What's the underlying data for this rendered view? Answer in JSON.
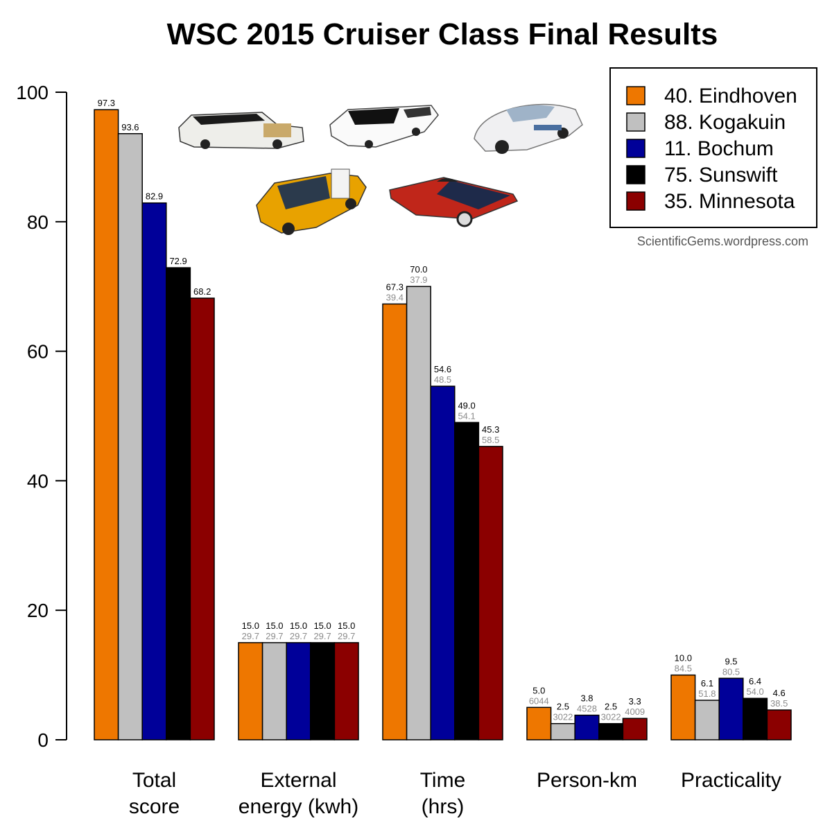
{
  "chart_data": {
    "type": "bar",
    "title": "WSC 2015 Cruiser Class Final Results",
    "credit": "ScientificGems.wordpress.com",
    "ylim": [
      0,
      100
    ],
    "yticks": [
      0,
      20,
      40,
      60,
      80,
      100
    ],
    "grid": false,
    "legend_position": "top-right",
    "categories": [
      {
        "line1": "Total",
        "line2": "score"
      },
      {
        "line1": "External",
        "line2": "energy (kwh)"
      },
      {
        "line1": "Time",
        "line2": "(hrs)"
      },
      {
        "line1": "Person-km",
        "line2": ""
      },
      {
        "line1": "Practicality",
        "line2": ""
      }
    ],
    "series": [
      {
        "name": "40. Eindhoven",
        "color": "#ee7700",
        "values": [
          97.3,
          15.0,
          67.3,
          5.0,
          10.0
        ],
        "labels": [
          "97.3",
          "15.0",
          "67.3",
          "5.0",
          "10.0"
        ],
        "sublabels": [
          "",
          "29.7",
          "39.4",
          "6044",
          "84.5"
        ]
      },
      {
        "name": "88. Kogakuin",
        "color": "#c0c0c0",
        "values": [
          93.6,
          15.0,
          70.0,
          2.5,
          6.1
        ],
        "labels": [
          "93.6",
          "15.0",
          "70.0",
          "2.5",
          "6.1"
        ],
        "sublabels": [
          "",
          "29.7",
          "37.9",
          "3022",
          "51.8"
        ]
      },
      {
        "name": "11. Bochum",
        "color": "#000099",
        "values": [
          82.9,
          15.0,
          54.6,
          3.8,
          9.5
        ],
        "labels": [
          "82.9",
          "15.0",
          "54.6",
          "3.8",
          "9.5"
        ],
        "sublabels": [
          "",
          "29.7",
          "48.5",
          "4528",
          "80.5"
        ]
      },
      {
        "name": "75. Sunswift",
        "color": "#000000",
        "values": [
          72.9,
          15.0,
          49.0,
          2.5,
          6.4
        ],
        "labels": [
          "72.9",
          "15.0",
          "49.0",
          "2.5",
          "6.4"
        ],
        "sublabels": [
          "",
          "29.7",
          "54.1",
          "3022",
          "54.0"
        ]
      },
      {
        "name": "35. Minnesota",
        "color": "#8b0000",
        "values": [
          68.2,
          15.0,
          45.3,
          3.3,
          4.6
        ],
        "labels": [
          "68.2",
          "15.0",
          "45.3",
          "3.3",
          "4.6"
        ],
        "sublabels": [
          "",
          "29.7",
          "58.5",
          "4009",
          "38.5"
        ]
      }
    ]
  }
}
